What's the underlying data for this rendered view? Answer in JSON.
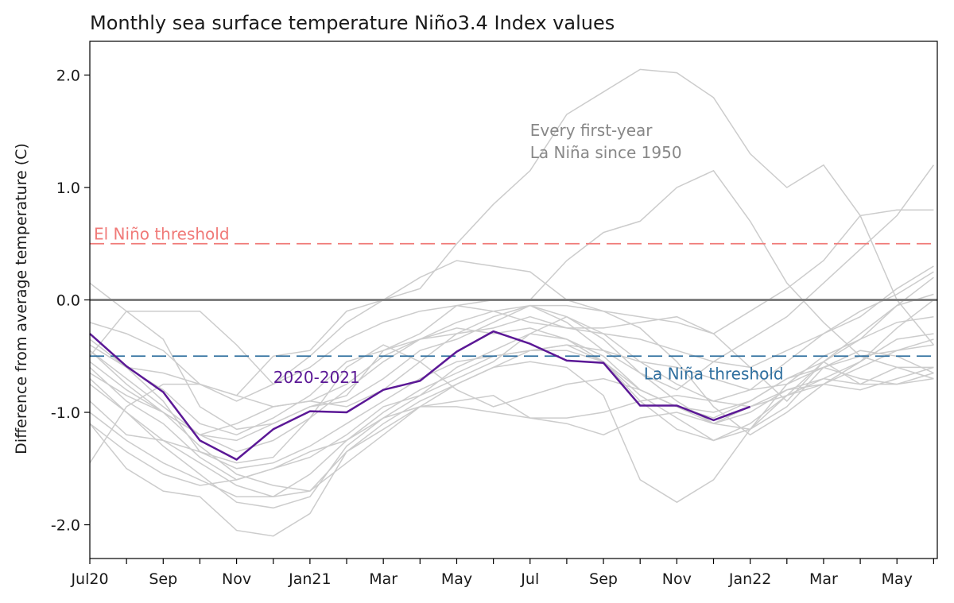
{
  "chart_data": {
    "type": "line",
    "title": "Monthly sea surface temperature Niño3.4 Index values",
    "xlabel": "",
    "ylabel": "Difference from average temperature (C)",
    "ylim": [
      -2.3,
      2.3
    ],
    "yticks": [
      2.0,
      1.0,
      0.0,
      -1.0,
      -2.0
    ],
    "ytick_labels": [
      "2.0",
      "1.0",
      "0.0",
      "-1.0",
      "-2.0"
    ],
    "xticks": [
      {
        "index": 0,
        "label": "Jul20"
      },
      {
        "index": 2,
        "label": "Sep"
      },
      {
        "index": 4,
        "label": "Nov"
      },
      {
        "index": 6,
        "label": "Jan21"
      },
      {
        "index": 8,
        "label": "Mar"
      },
      {
        "index": 10,
        "label": "May"
      },
      {
        "index": 12,
        "label": "Jul"
      },
      {
        "index": 14,
        "label": "Sep"
      },
      {
        "index": 16,
        "label": "Nov"
      },
      {
        "index": 18,
        "label": "Jan22"
      },
      {
        "index": 20,
        "label": "Mar"
      },
      {
        "index": 22,
        "label": "May"
      }
    ],
    "xlim": [
      0,
      23.1
    ],
    "grid": false,
    "zero_line": 0.0,
    "thresholds": [
      {
        "label": "El Niño threshold",
        "value": 0.5,
        "color": "#f07a78"
      },
      {
        "label": "La Niña threshold",
        "value": -0.5,
        "color": "#2f6f9f"
      }
    ],
    "background_series_label": "Every first-year\nLa Niña since 1950",
    "background_series_color": "#cccccc",
    "background_series": [
      [
        -0.3,
        -0.6,
        -0.9,
        -1.35,
        -1.5,
        -1.45,
        -1.3,
        -1.1,
        -0.9,
        -0.7,
        -0.55,
        -0.5,
        -0.45,
        -0.4,
        -0.45,
        -0.55,
        -0.6,
        -0.7,
        -0.8,
        -0.75,
        -0.6,
        -0.5,
        -0.45,
        -0.4
      ],
      [
        -0.45,
        -0.75,
        -1.0,
        -1.2,
        -1.1,
        -0.95,
        -0.9,
        -0.95,
        -0.8,
        -0.55,
        -0.3,
        -0.15,
        -0.05,
        -0.05,
        -0.1,
        -0.25,
        -0.55,
        -0.95,
        -1.2,
        -1.0,
        -0.75,
        -0.55,
        -0.35,
        -0.3
      ],
      [
        -0.6,
        -0.9,
        -1.1,
        -1.4,
        -1.6,
        -1.5,
        -1.35,
        -1.25,
        -1.0,
        -0.8,
        -0.65,
        -0.5,
        -0.45,
        -0.45,
        -0.55,
        -0.85,
        -1.05,
        -1.25,
        -1.15,
        -0.85,
        -0.7,
        -0.75,
        -0.75,
        -0.65
      ],
      [
        -1.1,
        -1.35,
        -1.55,
        -1.65,
        -1.6,
        -1.5,
        -1.4,
        -1.2,
        -0.95,
        -0.85,
        -0.7,
        -0.55,
        -0.3,
        -0.15,
        -0.3,
        -0.55,
        -0.75,
        -0.9,
        -0.8,
        -0.55,
        -0.3,
        -0.1,
        0.05,
        0.25
      ],
      [
        -1.45,
        -0.95,
        -0.75,
        -0.75,
        -0.85,
        -0.95,
        -0.9,
        -0.75,
        -0.5,
        -0.35,
        -0.25,
        -0.3,
        -0.25,
        -0.35,
        -0.55,
        -0.9,
        -1.15,
        -1.25,
        -1.1,
        -0.85,
        -0.55,
        -0.3,
        -0.05,
        0.2
      ],
      [
        0.15,
        -0.1,
        -0.35,
        -0.95,
        -1.15,
        -1.1,
        -0.95,
        -0.85,
        -0.45,
        -0.35,
        -0.3,
        -0.25,
        -0.15,
        -0.25,
        -0.3,
        -0.35,
        -0.45,
        -0.55,
        -0.6,
        -0.45,
        -0.3,
        -0.15,
        0.1,
        0.3
      ],
      [
        -0.5,
        -0.1,
        -0.1,
        -0.1,
        -0.4,
        -0.75,
        -0.6,
        -0.35,
        -0.2,
        -0.1,
        -0.05,
        -0.1,
        -0.2,
        -0.25,
        -0.25,
        -0.2,
        -0.15,
        -0.3,
        -0.6,
        -0.9,
        -0.55,
        -0.35,
        -0.05,
        0.05
      ],
      [
        -0.65,
        -0.85,
        -1.0,
        -1.3,
        -1.55,
        -1.65,
        -1.7,
        -1.35,
        -1.1,
        -0.9,
        -0.75,
        -0.6,
        -0.45,
        -0.4,
        -0.55,
        -0.8,
        -0.95,
        -1.0,
        -0.9,
        -0.7,
        -0.6,
        -0.7,
        -0.75,
        -0.7
      ],
      [
        -0.75,
        -1.0,
        -1.25,
        -1.45,
        -1.65,
        -1.75,
        -1.7,
        -1.45,
        -1.2,
        -0.95,
        -0.75,
        -0.6,
        -0.55,
        -0.6,
        -0.85,
        -1.6,
        -1.8,
        -1.6,
        -1.15,
        -0.75,
        -0.5,
        -0.35,
        -0.2,
        -0.15
      ],
      [
        -0.55,
        -0.8,
        -1.0,
        -1.2,
        -1.25,
        -1.1,
        -0.95,
        -0.9,
        -0.7,
        -0.45,
        -0.35,
        -0.2,
        -0.05,
        -0.15,
        -0.35,
        -0.65,
        -0.9,
        -1.1,
        -0.95,
        -0.8,
        -0.7,
        -0.55,
        -0.25,
        0.0
      ],
      [
        -0.7,
        -1.0,
        -1.3,
        -1.55,
        -1.8,
        -1.85,
        -1.75,
        -1.3,
        -1.05,
        -0.85,
        -0.6,
        -0.45,
        -0.3,
        -0.35,
        -0.5,
        -0.8,
        -0.95,
        -1.1,
        -1.0,
        -0.8,
        -0.75,
        -0.8,
        -0.7,
        -0.6
      ],
      [
        -1.0,
        -1.25,
        -1.45,
        -1.6,
        -1.75,
        -1.75,
        -1.55,
        -1.25,
        -1.05,
        -0.95,
        -0.95,
        -1.0,
        -1.05,
        -1.05,
        -1.0,
        -0.9,
        -0.85,
        -0.9,
        -0.95,
        -0.85,
        -0.75,
        -0.6,
        -0.45,
        -0.35
      ],
      [
        -1.1,
        -1.5,
        -1.7,
        -1.75,
        -2.05,
        -2.1,
        -1.9,
        -1.35,
        -1.15,
        -0.95,
        -0.9,
        -0.85,
        -1.05,
        -1.1,
        -1.2,
        -1.05,
        -1.0,
        -1.1,
        -1.15,
        -0.95,
        -0.6,
        -0.45,
        -0.5,
        -0.65
      ],
      [
        -0.9,
        -1.2,
        -1.25,
        -1.35,
        -1.45,
        -1.4,
        -1.05,
        -0.6,
        -0.4,
        -0.55,
        -0.8,
        -0.95,
        -0.85,
        -0.75,
        -0.7,
        -0.8,
        -0.95,
        -1.05,
        -0.9,
        -0.7,
        -0.55,
        -0.75,
        -0.6,
        -0.6
      ],
      [
        -0.4,
        -0.6,
        -0.65,
        -0.75,
        -0.85,
        -0.5,
        -0.45,
        -0.1,
        0.0,
        0.2,
        0.35,
        0.3,
        0.25,
        0.0,
        -0.1,
        -0.15,
        -0.2,
        -0.3,
        -0.1,
        0.1,
        0.35,
        0.75,
        0.8,
        0.8
      ],
      [
        -0.35,
        -0.6,
        -0.8,
        -1.1,
        -1.2,
        -1.05,
        -0.85,
        -0.55,
        -0.45,
        -0.3,
        -0.05,
        0.0,
        0.0,
        0.35,
        0.6,
        0.7,
        1.0,
        1.15,
        0.7,
        0.15,
        -0.2,
        -0.5,
        -0.6,
        -0.7
      ],
      [
        -0.2,
        -0.3,
        -0.45,
        -0.75,
        -0.9,
        -0.75,
        -0.5,
        -0.2,
        0.0,
        0.1,
        0.5,
        0.85,
        1.15,
        1.65,
        1.85,
        2.05,
        2.02,
        1.8,
        1.3,
        1.0,
        1.2,
        0.75,
        0.0,
        -0.4
      ],
      [
        -0.45,
        -0.7,
        -0.95,
        -1.2,
        -1.35,
        -1.25,
        -1.05,
        -0.8,
        -0.55,
        -0.35,
        -0.2,
        -0.1,
        -0.05,
        -0.2,
        -0.45,
        -0.65,
        -0.8,
        -0.55,
        -0.35,
        -0.15,
        0.15,
        0.45,
        0.75,
        1.2
      ]
    ],
    "series": [
      {
        "name": "2020-2021",
        "color": "#5b1896",
        "values": [
          -0.3,
          -0.59,
          -0.82,
          -1.25,
          -1.42,
          -1.15,
          -0.99,
          -1.0,
          -0.8,
          -0.72,
          -0.46,
          -0.28,
          -0.39,
          -0.54,
          -0.56,
          -0.94,
          -0.94,
          -1.07,
          -0.95
        ]
      }
    ],
    "annotations": [
      {
        "text": "2020-2021",
        "color": "#5b1896"
      },
      {
        "text": "Every first-year",
        "color": "#888888"
      },
      {
        "text": "La Niña since 1950",
        "color": "#888888"
      }
    ]
  }
}
